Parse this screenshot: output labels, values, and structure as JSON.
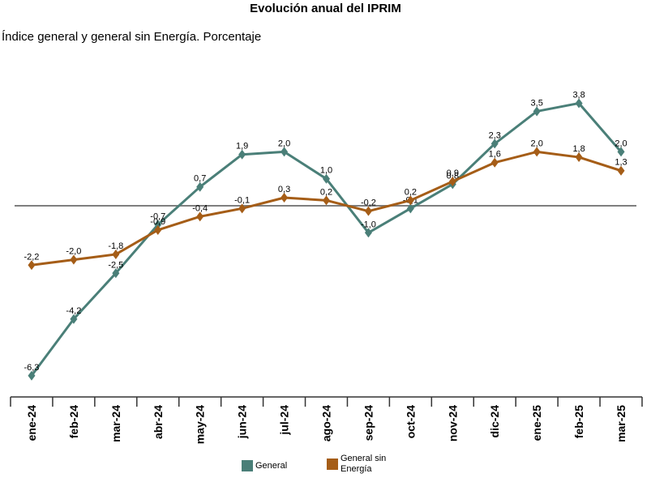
{
  "chart_data": {
    "type": "line",
    "title": "Evolución anual del IPRIM",
    "subtitle": "Índice general y general sin Energía. Porcentaje",
    "categories": [
      "ene-24",
      "feb-24",
      "mar-24",
      "abr-24",
      "may-24",
      "jun-24",
      "jul-24",
      "ago-24",
      "sep-24",
      "oct-24",
      "nov-24",
      "dic-24",
      "ene-25",
      "feb-25",
      "mar-25"
    ],
    "series": [
      {
        "name": "General",
        "color": "#4a7f78",
        "values": [
          -6.3,
          -4.2,
          -2.5,
          -0.7,
          0.7,
          1.9,
          2.0,
          1.0,
          -1.0,
          -0.1,
          0.8,
          2.3,
          3.5,
          3.8,
          2.0
        ],
        "labels": [
          "-6,3",
          "-4,2",
          "-2,5",
          "-0,7",
          "0,7",
          "1,9",
          "2,0",
          "1,0",
          "-1,0",
          "-0,1",
          "0,8",
          "2,3",
          "3,5",
          "3,8",
          "2,0"
        ]
      },
      {
        "name": "General sin Energía",
        "color": "#a55d17",
        "values": [
          -2.2,
          -2.0,
          -1.8,
          -0.9,
          -0.4,
          -0.1,
          0.3,
          0.2,
          -0.2,
          0.2,
          0.9,
          1.6,
          2.0,
          1.8,
          1.3
        ],
        "labels": [
          "-2,2",
          "-2,0",
          "-1,8",
          "-0,9",
          "-0,4",
          "-0,1",
          "0,3",
          "0,2",
          "-0,2",
          "0,2",
          "0,9",
          "1,6",
          "2,0",
          "1,8",
          "1,3"
        ]
      }
    ],
    "ylim": [
      -7,
      5
    ],
    "zero_line": true,
    "grid": false,
    "legend_position": "bottom"
  }
}
